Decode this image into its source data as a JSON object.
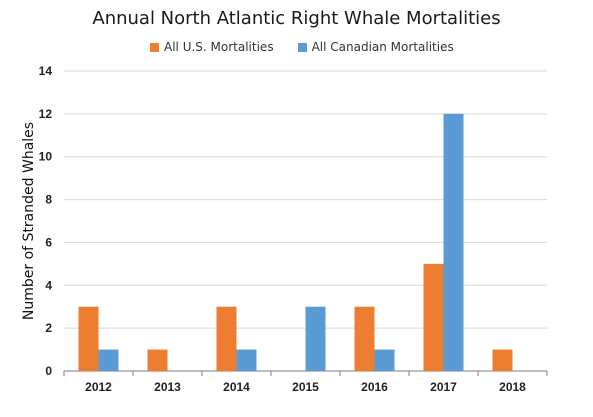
{
  "chart_data": {
    "type": "bar",
    "title": "Annual North Atlantic Right Whale Mortalities",
    "xlabel": "",
    "ylabel": "Number of  Stranded Whales",
    "ylim": [
      0,
      14
    ],
    "yticks": [
      0,
      2,
      4,
      6,
      8,
      10,
      12,
      14
    ],
    "grid": true,
    "legend_position": "top",
    "categories": [
      "2012",
      "2013",
      "2014",
      "2015",
      "2016",
      "2017",
      "2018"
    ],
    "series": [
      {
        "name": "All U.S. Mortalities",
        "color": "#ED7D31",
        "values": [
          3,
          1,
          3,
          0,
          3,
          5,
          1
        ]
      },
      {
        "name": "All Canadian Mortalities",
        "color": "#5B9BD5",
        "values": [
          1,
          0,
          1,
          3,
          1,
          12,
          0
        ]
      }
    ]
  }
}
